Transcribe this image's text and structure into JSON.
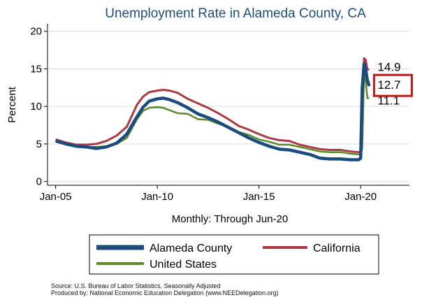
{
  "chart_data": {
    "type": "line",
    "title": "Unemployment Rate in Alameda County, CA",
    "ylabel": "Percent",
    "xlabel": "Monthly: Through Jun-20",
    "ylim": [
      -0.5,
      21
    ],
    "yticks": [
      0,
      5,
      10,
      15,
      20
    ],
    "xticks": [
      {
        "label": "Jan-05",
        "x": 2005.0
      },
      {
        "label": "Jan-10",
        "x": 2010.0
      },
      {
        "label": "Jan-15",
        "x": 2015.0
      },
      {
        "label": "Jan-20",
        "x": 2020.0
      }
    ],
    "xlim": [
      2004.6,
      2022.4
    ],
    "grid": "horizontal",
    "legend_position": "bottom",
    "series": [
      {
        "name": "Alameda County",
        "color": "#1b4b7d",
        "x": [
          2005.0,
          2005.5,
          2006.0,
          2006.5,
          2007.0,
          2007.5,
          2008.0,
          2008.5,
          2009.0,
          2009.3,
          2009.6,
          2010.0,
          2010.3,
          2010.6,
          2011.0,
          2011.5,
          2012.0,
          2012.5,
          2013.0,
          2013.5,
          2014.0,
          2014.5,
          2015.0,
          2015.5,
          2016.0,
          2016.5,
          2017.0,
          2017.5,
          2018.0,
          2018.5,
          2019.0,
          2019.5,
          2019.9,
          2020.0,
          2020.08,
          2020.17,
          2020.25,
          2020.33,
          2020.42
        ],
        "values": [
          5.4,
          5.0,
          4.7,
          4.6,
          4.4,
          4.6,
          5.1,
          6.3,
          8.6,
          9.9,
          10.7,
          11.0,
          11.1,
          10.9,
          10.5,
          9.8,
          9.0,
          8.5,
          7.9,
          7.2,
          6.5,
          5.8,
          5.2,
          4.7,
          4.3,
          4.2,
          3.9,
          3.6,
          3.1,
          3.0,
          3.0,
          2.9,
          2.9,
          3.1,
          12.5,
          15.7,
          14.9,
          13.5,
          12.7
        ]
      },
      {
        "name": "California",
        "color": "#a83a44",
        "x": [
          2005.0,
          2005.5,
          2006.0,
          2006.5,
          2007.0,
          2007.5,
          2008.0,
          2008.5,
          2009.0,
          2009.3,
          2009.6,
          2010.0,
          2010.3,
          2010.6,
          2011.0,
          2011.5,
          2012.0,
          2012.5,
          2013.0,
          2013.5,
          2014.0,
          2014.5,
          2015.0,
          2015.5,
          2016.0,
          2016.5,
          2017.0,
          2017.5,
          2018.0,
          2018.5,
          2019.0,
          2019.5,
          2019.9,
          2020.0,
          2020.08,
          2020.17,
          2020.25,
          2020.33,
          2020.42
        ],
        "values": [
          5.6,
          5.2,
          4.9,
          4.9,
          5.0,
          5.4,
          6.1,
          7.3,
          10.2,
          11.3,
          11.9,
          12.1,
          12.2,
          12.1,
          11.8,
          11.0,
          10.4,
          9.8,
          9.1,
          8.3,
          7.4,
          6.9,
          6.3,
          5.8,
          5.5,
          5.4,
          4.9,
          4.6,
          4.3,
          4.2,
          4.2,
          4.0,
          3.9,
          3.9,
          5.5,
          16.4,
          16.2,
          14.9,
          14.9
        ]
      },
      {
        "name": "United States",
        "color": "#5d8a2a",
        "x": [
          2005.0,
          2005.5,
          2006.0,
          2006.5,
          2007.0,
          2007.5,
          2008.0,
          2008.5,
          2009.0,
          2009.3,
          2009.6,
          2010.0,
          2010.3,
          2010.6,
          2011.0,
          2011.5,
          2012.0,
          2012.5,
          2013.0,
          2013.5,
          2014.0,
          2014.5,
          2015.0,
          2015.5,
          2016.0,
          2016.5,
          2017.0,
          2017.5,
          2018.0,
          2018.5,
          2019.0,
          2019.5,
          2019.9,
          2020.0,
          2020.08,
          2020.17,
          2020.25,
          2020.33,
          2020.42
        ],
        "values": [
          5.3,
          5.0,
          4.7,
          4.6,
          4.6,
          4.7,
          5.0,
          5.8,
          8.3,
          9.4,
          9.8,
          9.9,
          9.8,
          9.5,
          9.1,
          9.0,
          8.3,
          8.2,
          7.7,
          7.3,
          6.6,
          6.2,
          5.6,
          5.3,
          4.9,
          4.9,
          4.6,
          4.3,
          4.0,
          3.9,
          3.9,
          3.7,
          3.6,
          3.6,
          4.4,
          14.7,
          13.3,
          11.1,
          11.1
        ]
      }
    ],
    "annotations": [
      {
        "text": "14.9",
        "x": 2020.42,
        "y": 14.9,
        "series": "California",
        "boxed": false
      },
      {
        "text": "12.7",
        "x": 2020.42,
        "y": 12.7,
        "series": "Alameda County",
        "boxed": true
      },
      {
        "text": "11.1",
        "x": 2020.42,
        "y": 11.1,
        "series": "United States",
        "boxed": false
      }
    ],
    "colors": {
      "title": "#1f4e79",
      "grid": "#dcdcdc",
      "highlight_box": "#b71c1c"
    }
  },
  "footer": {
    "source": "Source: U.S. Bureau of Labor Statistics, Seasonally Adjusted",
    "produced_by": "Produced by: National Economic Education Delegation (www.NEEDelegation.org)"
  }
}
